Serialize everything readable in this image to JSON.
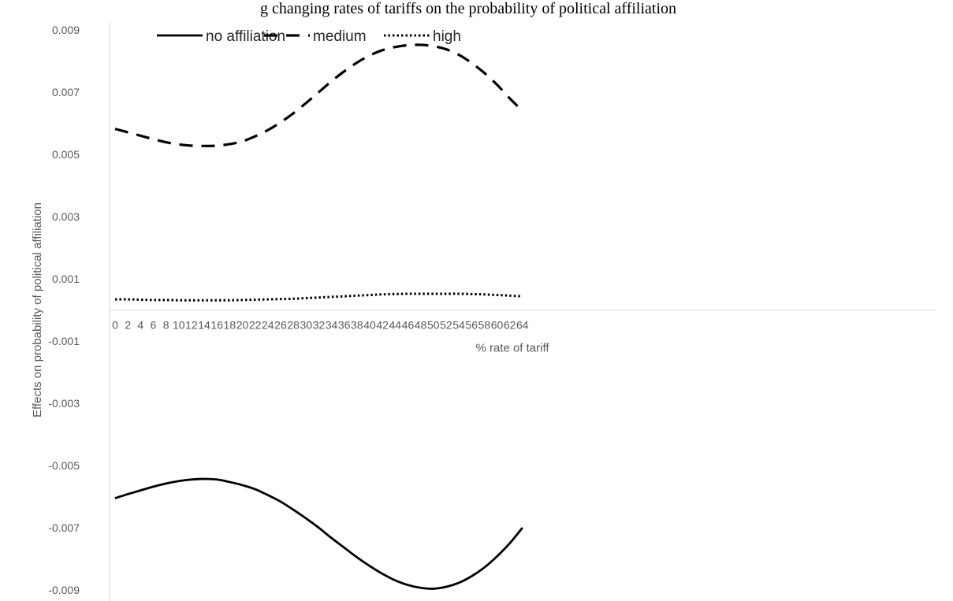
{
  "caption": "g changing rates of tariffs on the probability of political affiliation",
  "chart_data": {
    "type": "line",
    "xlabel": "% rate of tariff",
    "ylabel": "Effects on probability of political affiliation",
    "ylim": [
      -0.009,
      0.009
    ],
    "yticks": [
      "0.009",
      "0.007",
      "0.005",
      "0.003",
      "0.001",
      "-0.001",
      "-0.003",
      "-0.005",
      "-0.007",
      "-0.009"
    ],
    "categories": [
      "0",
      "2",
      "4",
      "6",
      "8",
      "10",
      "12",
      "14",
      "16",
      "18",
      "20",
      "22",
      "24",
      "26",
      "28",
      "30",
      "32",
      "34",
      "36",
      "38",
      "40",
      "42",
      "44",
      "46",
      "48",
      "50",
      "52",
      "54",
      "56",
      "58",
      "60",
      "62",
      "64"
    ],
    "legend_position": "top-left",
    "grid": false,
    "series": [
      {
        "name": "no affiliation",
        "style": "solid",
        "color": "#000000",
        "values": [
          -0.00605,
          -0.00592,
          -0.0058,
          -0.00568,
          -0.00558,
          -0.0055,
          -0.00545,
          -0.00543,
          -0.00545,
          -0.00553,
          -0.00563,
          -0.00576,
          -0.00595,
          -0.00616,
          -0.00642,
          -0.0067,
          -0.007,
          -0.00733,
          -0.00764,
          -0.00795,
          -0.00823,
          -0.00848,
          -0.00869,
          -0.00884,
          -0.00893,
          -0.00896,
          -0.0089,
          -0.00877,
          -0.00856,
          -0.00828,
          -0.00792,
          -0.0075,
          -0.007
        ]
      },
      {
        "name": "medium",
        "style": "dashed",
        "color": "#000000",
        "values": [
          0.00582,
          0.00571,
          0.0056,
          0.00549,
          0.00539,
          0.00532,
          0.00528,
          0.00527,
          0.00528,
          0.00533,
          0.00542,
          0.00558,
          0.00578,
          0.00603,
          0.00632,
          0.00665,
          0.007,
          0.00735,
          0.00767,
          0.00795,
          0.00818,
          0.00835,
          0.00845,
          0.00851,
          0.00852,
          0.00848,
          0.00838,
          0.0082,
          0.00794,
          0.00762,
          0.00724,
          0.0068,
          0.0064
        ]
      },
      {
        "name": "high",
        "style": "dotted",
        "color": "#000000",
        "values": [
          0.00034,
          0.00034,
          0.00033,
          0.00032,
          0.00032,
          0.00031,
          0.00031,
          0.00031,
          0.00031,
          0.00031,
          0.00032,
          0.00033,
          0.00034,
          0.00035,
          0.00036,
          0.00038,
          0.0004,
          0.00042,
          0.00044,
          0.00046,
          0.00048,
          0.0005,
          0.00051,
          0.00052,
          0.00052,
          0.00052,
          0.00052,
          0.00052,
          0.00051,
          0.0005,
          0.00048,
          0.00046,
          0.00044
        ]
      }
    ]
  }
}
